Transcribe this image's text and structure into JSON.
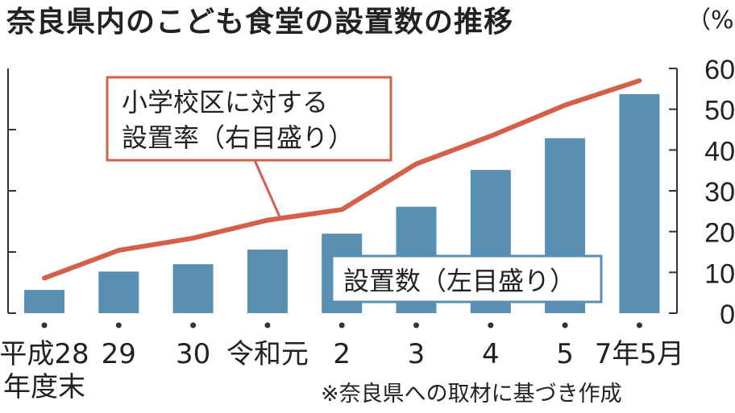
{
  "title": "奈良県内のこども食堂の設置数の推移",
  "right_axis_unit": "（%）",
  "source_note": "※奈良県への取材に基づき作成",
  "colors": {
    "bar": "#5a8fb4",
    "line": "#d4604a",
    "axis": "#333333",
    "text": "#222222"
  },
  "chart_data": {
    "type": "bar",
    "categories": [
      "平成28\n年度末",
      "29",
      "30",
      "令和元",
      "2",
      "3",
      "4",
      "5",
      "7年5月"
    ],
    "series": [
      {
        "name": "設置数（左目盛り）",
        "type": "bar",
        "axis": "left",
        "values": [
          19,
          34,
          40,
          52,
          65,
          87,
          117,
          143,
          179
        ]
      },
      {
        "name": "小学校区に対する設置率（右目盛り）",
        "type": "line",
        "axis": "right",
        "values": [
          8.6,
          15.4,
          18.4,
          22.8,
          25.4,
          36.6,
          43.4,
          51.0,
          57.0
        ]
      }
    ],
    "y_left_range": [
      0,
      200
    ],
    "y_right": {
      "range": [
        0,
        60
      ],
      "ticks": [
        "0",
        "10",
        "20",
        "30",
        "40",
        "50",
        "60"
      ],
      "unit": "（%）"
    },
    "annotations": {
      "line_label": "小学校区に対する\n設置率（右目盛り）",
      "bar_label": "設置数（左目盛り）"
    },
    "grid": false,
    "legend": "callout boxes"
  }
}
